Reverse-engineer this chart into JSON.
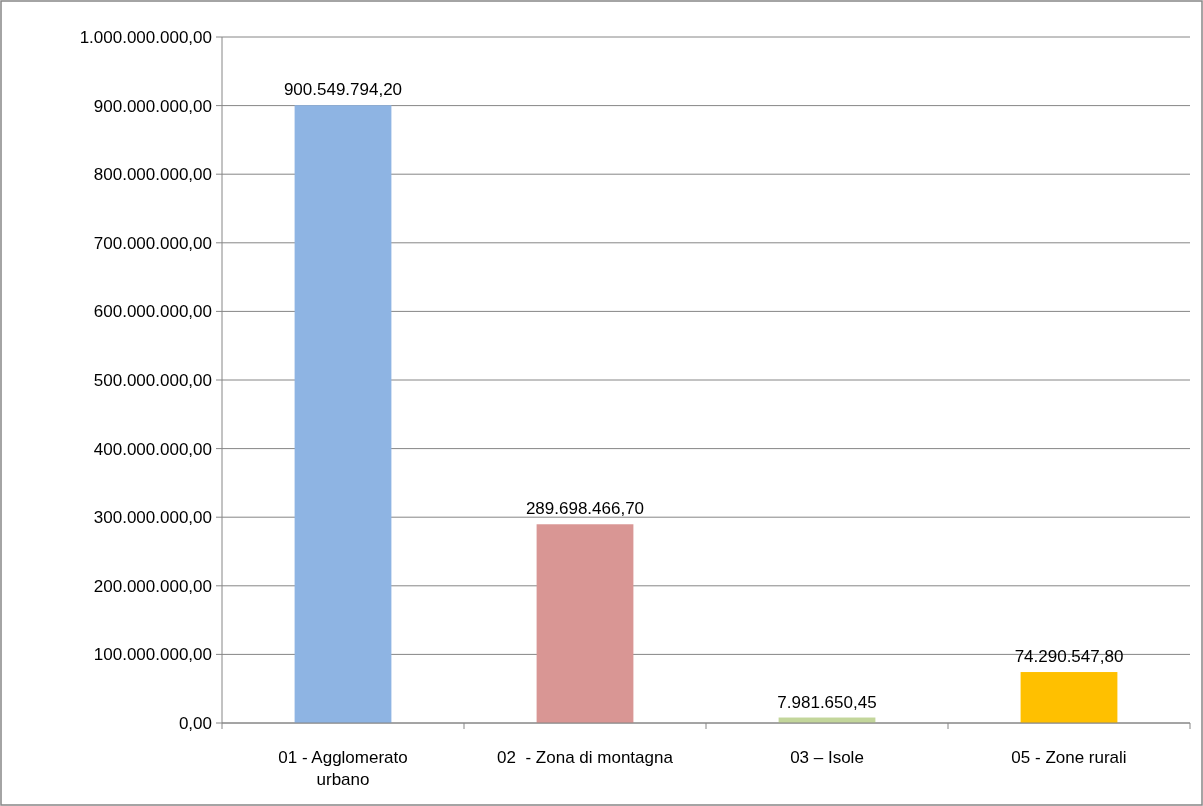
{
  "chart_data": {
    "type": "bar",
    "categories": [
      "01 - Agglomerato urbano",
      "02  - Zona di montagna",
      "03 – Isole",
      "05 - Zone rurali"
    ],
    "values": [
      900549794.2,
      289698466.7,
      7981650.45,
      74290547.8
    ],
    "colors": [
      "#8eb4e3",
      "#d99694",
      "#c3d69b",
      "#ffc000"
    ],
    "value_labels": [
      "900.549.794,20",
      "289.698.466,70",
      "7.981.650,45",
      "74.290.547,80"
    ],
    "ylim": [
      0,
      1000000000
    ],
    "yticks": [
      {
        "value": 0,
        "label": "0,00"
      },
      {
        "value": 100000000,
        "label": "100.000.000,00"
      },
      {
        "value": 200000000,
        "label": "200.000.000,00"
      },
      {
        "value": 300000000,
        "label": "300.000.000,00"
      },
      {
        "value": 400000000,
        "label": "400.000.000,00"
      },
      {
        "value": 500000000,
        "label": "500.000.000,00"
      },
      {
        "value": 600000000,
        "label": "600.000.000,00"
      },
      {
        "value": 700000000,
        "label": "700.000.000,00"
      },
      {
        "value": 800000000,
        "label": "800.000.000,00"
      },
      {
        "value": 900000000,
        "label": "900.000.000,00"
      },
      {
        "value": 1000000000,
        "label": "1.000.000.000,00"
      }
    ],
    "grid": "y"
  }
}
